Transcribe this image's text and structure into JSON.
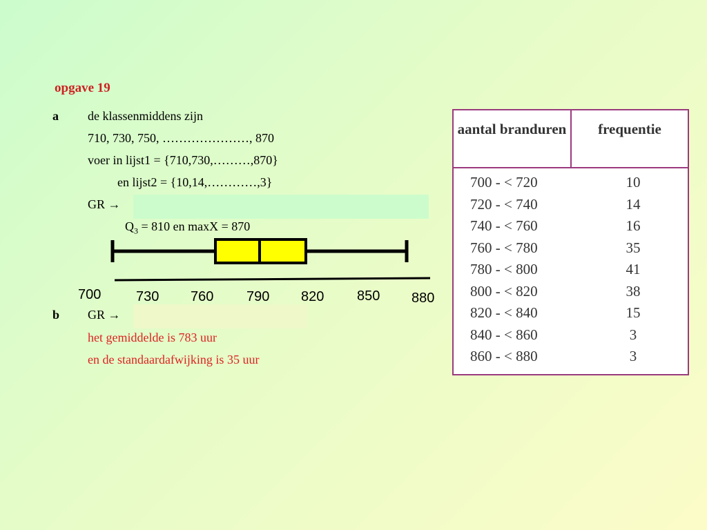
{
  "title": "opgave 19",
  "part_a": {
    "label": "a",
    "line1": "de klassenmiddens zijn",
    "line2": "710, 730, 750, …………………, 870",
    "line3": "voer in  lijst1 = {710,730,………,870}",
    "line4": "en  lijst2 = {10,14,…………,3}",
    "gr": "GR",
    "q3_prefix": "Q",
    "q3_sub": "3",
    "q3_rest": " = 810  en  maxX = 870"
  },
  "part_b": {
    "label": "b",
    "gr": "GR",
    "line1": "het gemiddelde is 783 uur",
    "line2": "en de standaardafwijking is 35 uur"
  },
  "arrow": "→",
  "boxplot": {
    "axis_ticks": [
      "700",
      "730",
      "760",
      "790",
      "820",
      "850",
      "880"
    ],
    "box_fill": "#ffff00",
    "line_color": "#000000"
  },
  "table": {
    "headers": [
      "aantal branduren",
      "frequentie"
    ],
    "rows": [
      [
        "700 - < 720",
        "10"
      ],
      [
        "720 - < 740",
        "14"
      ],
      [
        "740 - < 760",
        "16"
      ],
      [
        "760 - < 780",
        "35"
      ],
      [
        "780 - < 800",
        "41"
      ],
      [
        "800 - < 820",
        "38"
      ],
      [
        "820 - < 840",
        "15"
      ],
      [
        "840 - < 860",
        "3"
      ],
      [
        "860 - < 880",
        "3"
      ]
    ],
    "border_color": "#9a3a7e"
  }
}
